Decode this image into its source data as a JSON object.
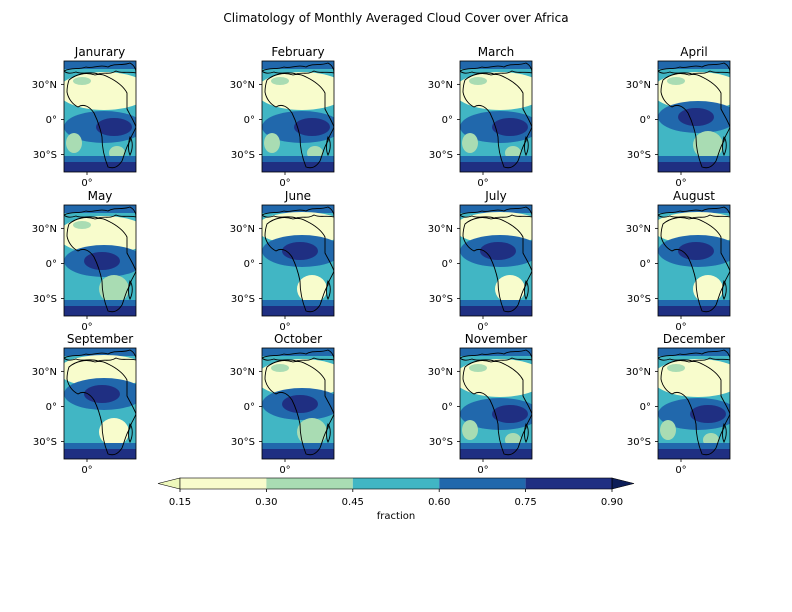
{
  "title": "Climatology of Monthly Averaged Cloud Cover over Africa",
  "chart_data": {
    "type": "heatmap",
    "title": "Climatology of Monthly Averaged Cloud Cover over Africa",
    "panels": [
      {
        "label": "Janurary"
      },
      {
        "label": "February"
      },
      {
        "label": "March"
      },
      {
        "label": "April"
      },
      {
        "label": "May"
      },
      {
        "label": "June"
      },
      {
        "label": "July"
      },
      {
        "label": "August"
      },
      {
        "label": "September"
      },
      {
        "label": "October"
      },
      {
        "label": "November"
      },
      {
        "label": "December"
      }
    ],
    "y_ticks": [
      "30°N",
      "0°",
      "30°S"
    ],
    "y_tick_values": [
      30,
      0,
      -30
    ],
    "x_ticks": [
      "0°"
    ],
    "x_tick_values": [
      0
    ],
    "lat_range": [
      -45,
      50
    ],
    "colorbar": {
      "label": "fraction",
      "levels": [
        0.15,
        0.3,
        0.45,
        0.6,
        0.75,
        0.9
      ],
      "tick_labels": [
        "0.15",
        "0.30",
        "0.45",
        "0.60",
        "0.75",
        "0.90"
      ],
      "extend": "both",
      "colors": [
        "#eef8bb",
        "#f8fccc",
        "#a9dcb3",
        "#41b6c4",
        "#2168ac",
        "#1f2f82",
        "#0c1d58"
      ]
    },
    "colormap": "YlGnBu"
  }
}
